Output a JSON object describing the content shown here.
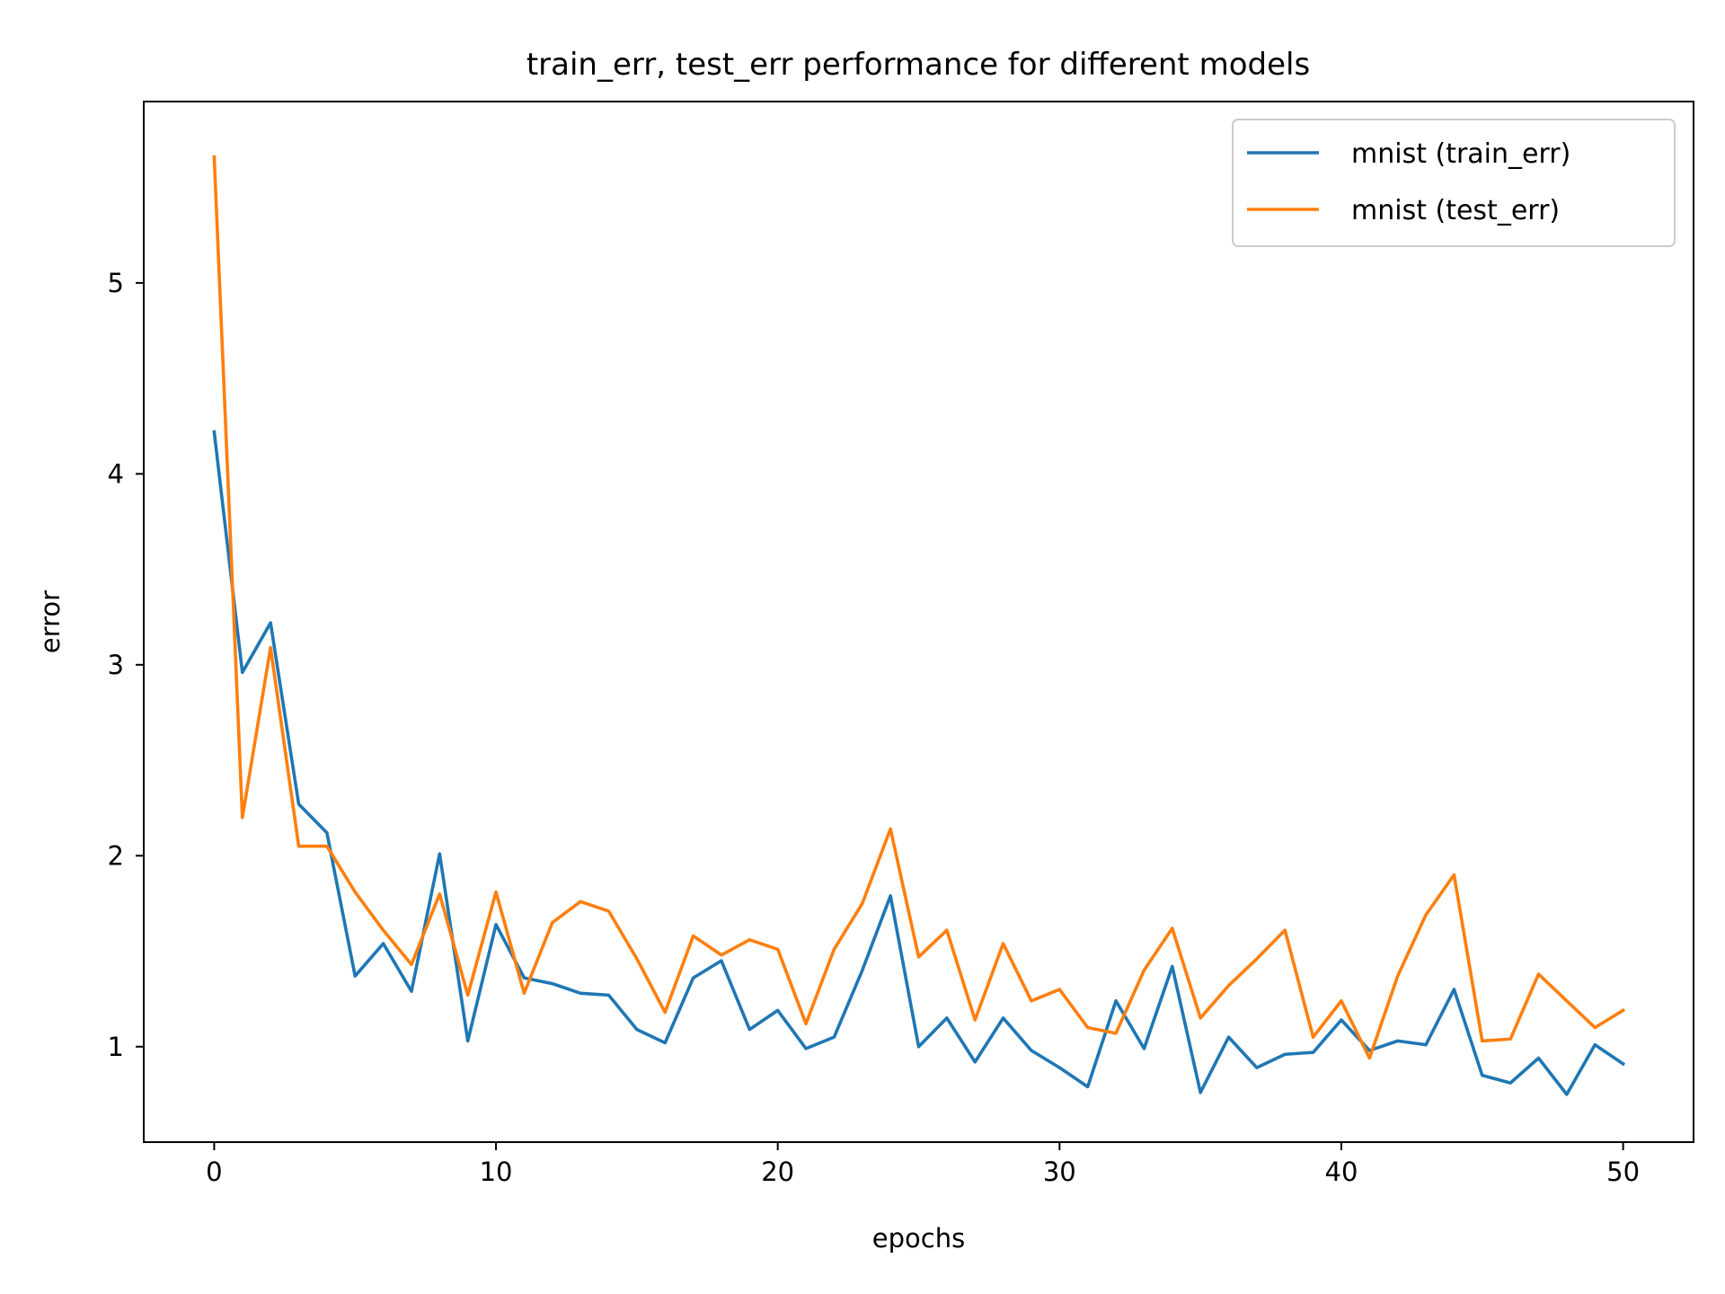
{
  "chart_data": {
    "type": "line",
    "title": "train_err, test_err performance for different models",
    "xlabel": "epochs",
    "ylabel": "error",
    "xlim": [
      -2.5,
      52.5
    ],
    "ylim": [
      0.5,
      5.95
    ],
    "xticks": [
      0,
      10,
      20,
      30,
      40,
      50
    ],
    "yticks": [
      1,
      2,
      3,
      4,
      5
    ],
    "grid": false,
    "legend_position": "top-right",
    "x": [
      0,
      1,
      2,
      3,
      4,
      5,
      6,
      7,
      8,
      9,
      10,
      11,
      12,
      13,
      14,
      15,
      16,
      17,
      18,
      19,
      20,
      21,
      22,
      23,
      24,
      25,
      26,
      27,
      28,
      29,
      30,
      31,
      32,
      33,
      34,
      35,
      36,
      37,
      38,
      39,
      40,
      41,
      42,
      43,
      44,
      45,
      46,
      47,
      48,
      49,
      50
    ],
    "series": [
      {
        "name": "mnist (train_err)",
        "color": "#1f77b4",
        "values": [
          4.22,
          2.96,
          3.22,
          2.27,
          2.12,
          1.37,
          1.54,
          1.29,
          2.01,
          1.03,
          1.64,
          1.36,
          1.33,
          1.28,
          1.27,
          1.09,
          1.02,
          1.36,
          1.45,
          1.09,
          1.19,
          0.99,
          1.05,
          1.4,
          1.79,
          1.0,
          1.15,
          0.92,
          1.15,
          0.98,
          0.89,
          0.79,
          1.24,
          0.99,
          1.42,
          0.76,
          1.05,
          0.89,
          0.96,
          0.97,
          1.14,
          0.98,
          1.03,
          1.01,
          1.3,
          0.85,
          0.81,
          0.94,
          0.75,
          1.01,
          0.91
        ]
      },
      {
        "name": "mnist (test_err)",
        "color": "#ff7f0e",
        "values": [
          5.66,
          2.2,
          3.09,
          2.05,
          2.05,
          1.81,
          1.61,
          1.43,
          1.8,
          1.27,
          1.81,
          1.28,
          1.65,
          1.76,
          1.71,
          1.46,
          1.18,
          1.58,
          1.48,
          1.56,
          1.51,
          1.12,
          1.51,
          1.75,
          2.14,
          1.47,
          1.61,
          1.14,
          1.54,
          1.24,
          1.3,
          1.1,
          1.07,
          1.4,
          1.62,
          1.15,
          1.32,
          1.46,
          1.61,
          1.05,
          1.24,
          0.94,
          1.37,
          1.69,
          1.9,
          1.03,
          1.04,
          1.38,
          1.24,
          1.1,
          1.19
        ]
      }
    ]
  }
}
